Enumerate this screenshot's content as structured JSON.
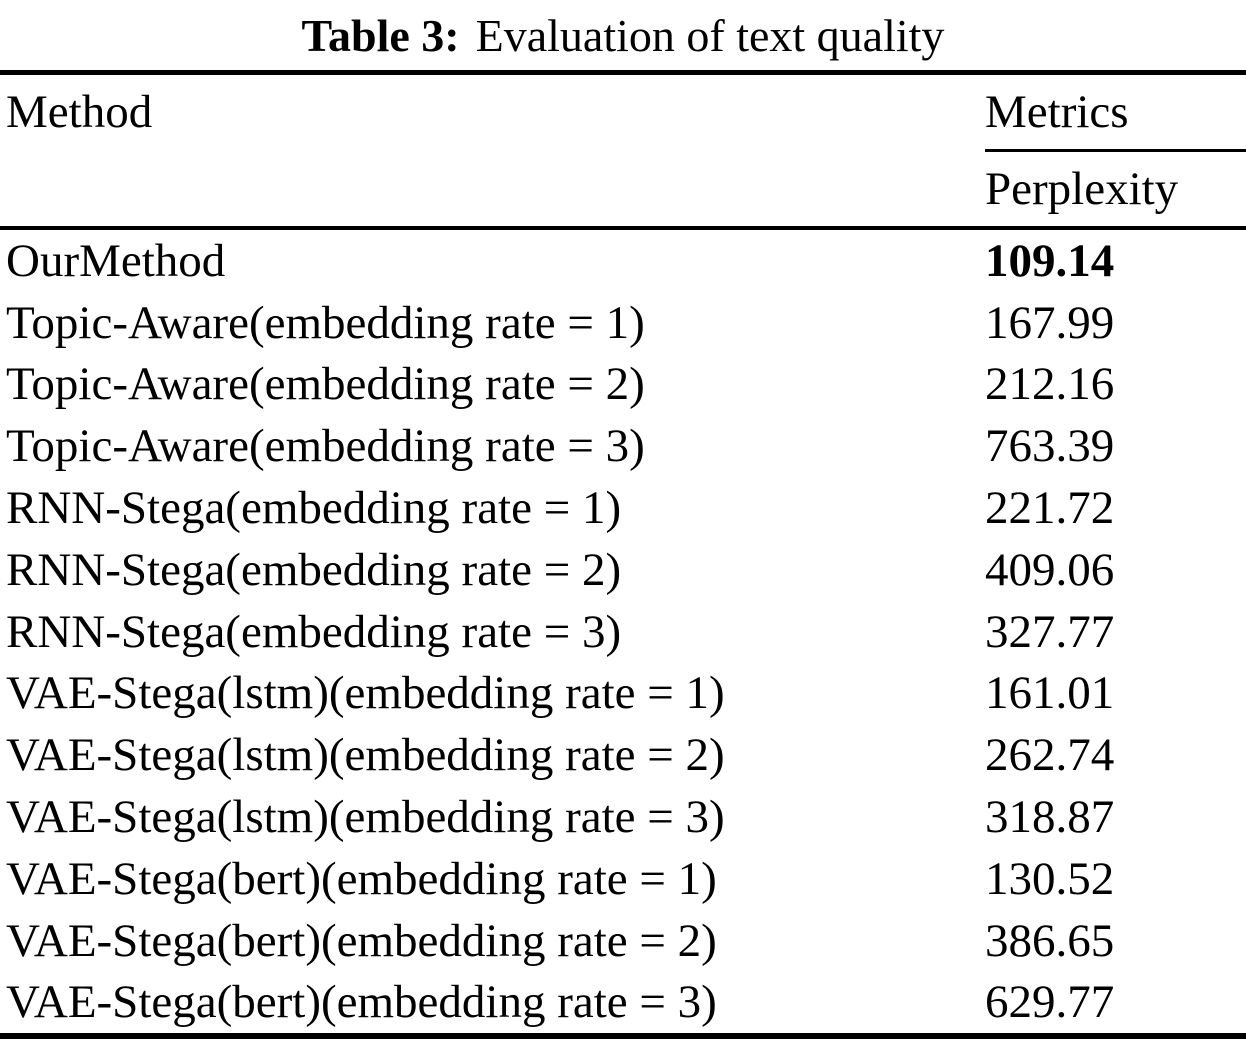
{
  "title": {
    "label": "Table 3:",
    "text": "Evaluation of text quality"
  },
  "table": {
    "columns": {
      "method": "Method",
      "metrics_group": "Metrics",
      "metric": "Perplexity"
    },
    "rows": [
      {
        "method": "OurMethod",
        "perplexity": "109.14",
        "bold": true
      },
      {
        "method": "Topic-Aware(embedding rate = 1)",
        "perplexity": "167.99",
        "bold": false
      },
      {
        "method": "Topic-Aware(embedding rate = 2)",
        "perplexity": "212.16",
        "bold": false
      },
      {
        "method": "Topic-Aware(embedding rate = 3)",
        "perplexity": "763.39",
        "bold": false
      },
      {
        "method": "RNN-Stega(embedding rate = 1)",
        "perplexity": "221.72",
        "bold": false
      },
      {
        "method": "RNN-Stega(embedding rate = 2)",
        "perplexity": "409.06",
        "bold": false
      },
      {
        "method": "RNN-Stega(embedding rate = 3)",
        "perplexity": "327.77",
        "bold": false
      },
      {
        "method": "VAE-Stega(lstm)(embedding rate = 1)",
        "perplexity": "161.01",
        "bold": false
      },
      {
        "method": "VAE-Stega(lstm)(embedding rate = 2)",
        "perplexity": "262.74",
        "bold": false
      },
      {
        "method": "VAE-Stega(lstm)(embedding rate = 3)",
        "perplexity": "318.87",
        "bold": false
      },
      {
        "method": "VAE-Stega(bert)(embedding rate = 1)",
        "perplexity": "130.52",
        "bold": false
      },
      {
        "method": "VAE-Stega(bert)(embedding rate = 2)",
        "perplexity": "386.65",
        "bold": false
      },
      {
        "method": "VAE-Stega(bert)(embedding rate = 3)",
        "perplexity": "629.77",
        "bold": false
      }
    ]
  },
  "colors": {
    "text": "#000000",
    "background": "#ffffff",
    "rule": "#000000"
  }
}
